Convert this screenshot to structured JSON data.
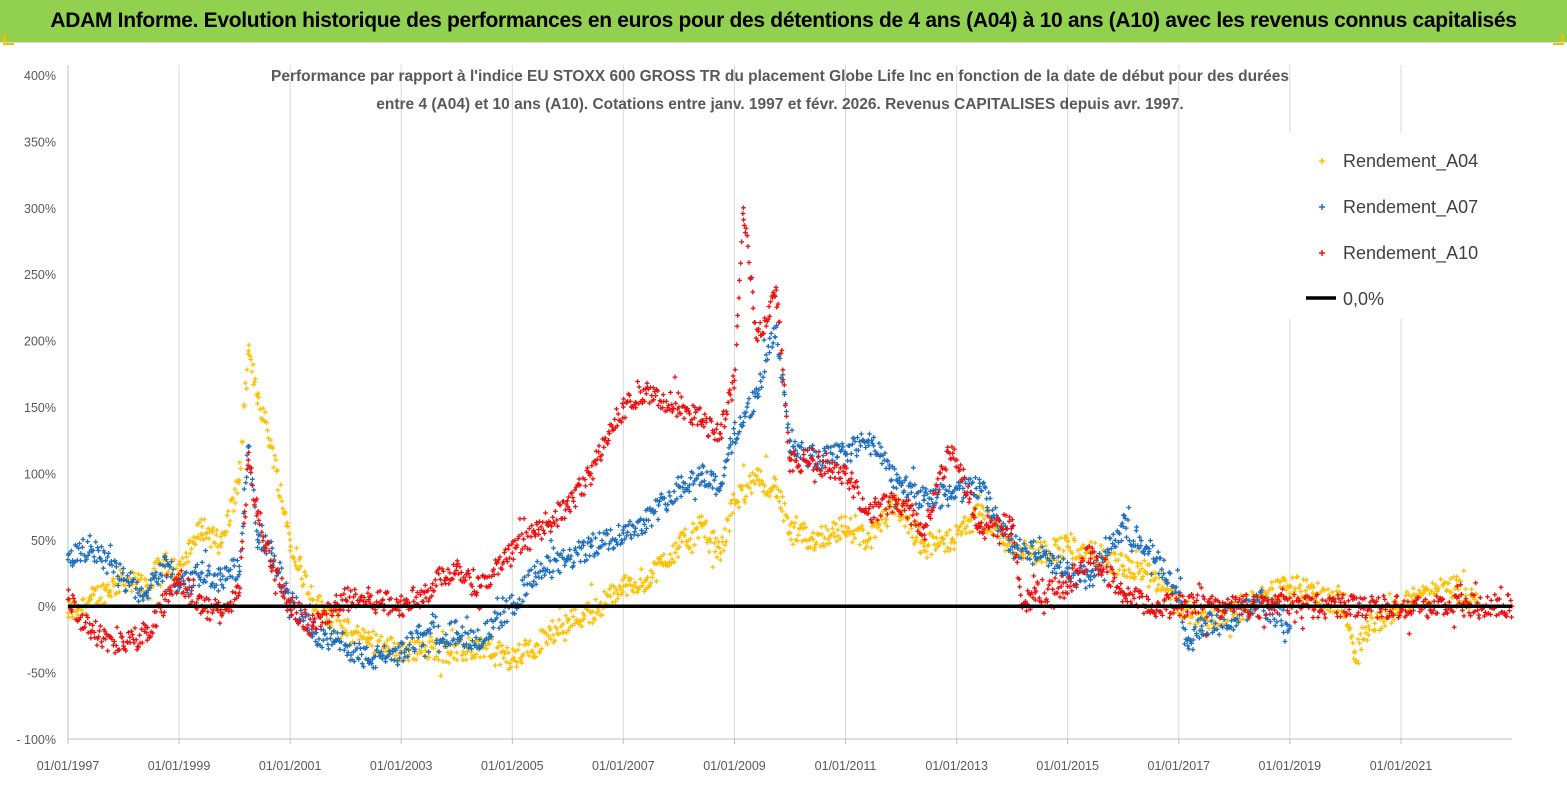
{
  "banner": {
    "title": "ADAM Informe. Evolution historique des performances en euros pour des détentions de 4 ans (A04) à 10 ans (A10) avec les revenus connus capitalisés"
  },
  "chart_data": {
    "type": "scatter",
    "title_line1": "Performance par rapport à l'indice EU STOXX 600 GROSS TR  du placement Globe Life Inc en fonction de la date de début pour des durées",
    "title_line2": "entre 4 (A04) et 10 ans (A10).  Cotations entre janv. 1997 et févr. 2026. Revenus CAPITALISES depuis avr. 1997.",
    "xlabel": "",
    "ylabel": "",
    "ylim": [
      -100,
      400
    ],
    "xlim": [
      "1997-01-01",
      "2023-01-01"
    ],
    "yticks": [
      "400%",
      "350%",
      "300%",
      "250%",
      "200%",
      "150%",
      "100%",
      "50%",
      "0%",
      "-50%",
      "- 100%"
    ],
    "ytick_values": [
      400,
      350,
      300,
      250,
      200,
      150,
      100,
      50,
      0,
      -50,
      -100
    ],
    "xticks": [
      "01/01/1997",
      "01/01/1999",
      "01/01/2001",
      "01/01/2003",
      "01/01/2005",
      "01/01/2007",
      "01/01/2009",
      "01/01/2011",
      "01/01/2013",
      "01/01/2015",
      "01/01/2017",
      "01/01/2019",
      "01/01/2021"
    ],
    "grid": "vertical",
    "legend_placement": "top-right",
    "series": [
      {
        "name": "Rendement_A04",
        "color": "#ffc000",
        "marker": "+",
        "x": [
          "1997-01-01",
          "1997-06-01",
          "1998-01-01",
          "1998-06-01",
          "1998-10-01",
          "1999-01-01",
          "1999-06-01",
          "1999-10-01",
          "2000-02-01",
          "2000-04-01",
          "2000-06-01",
          "2000-09-01",
          "2001-01-01",
          "2001-06-01",
          "2002-01-01",
          "2002-06-01",
          "2003-01-01",
          "2003-06-01",
          "2004-01-01",
          "2004-06-01",
          "2005-01-01",
          "2005-06-01",
          "2006-01-01",
          "2006-06-01",
          "2007-01-01",
          "2007-06-01",
          "2008-01-01",
          "2008-06-01",
          "2008-10-01",
          "2009-01-01",
          "2009-06-01",
          "2009-10-01",
          "2010-01-01",
          "2010-06-01",
          "2011-01-01",
          "2011-06-01",
          "2011-12-01",
          "2012-06-01",
          "2012-12-01",
          "2013-06-01",
          "2014-01-01",
          "2014-06-01",
          "2015-01-01",
          "2015-06-01",
          "2016-01-01",
          "2016-06-01",
          "2017-01-01",
          "2017-06-01",
          "2018-01-01",
          "2018-06-01",
          "2019-01-01",
          "2019-06-01",
          "2020-01-01",
          "2020-03-01",
          "2020-06-01",
          "2021-01-01",
          "2021-06-01",
          "2022-01-01",
          "2022-06-01"
        ],
        "values": [
          -5,
          5,
          20,
          15,
          35,
          25,
          60,
          45,
          95,
          190,
          160,
          120,
          50,
          5,
          -20,
          -25,
          -35,
          -30,
          -35,
          -30,
          -40,
          -30,
          -10,
          -5,
          15,
          20,
          45,
          60,
          40,
          80,
          95,
          90,
          55,
          50,
          60,
          50,
          75,
          45,
          50,
          70,
          45,
          40,
          45,
          40,
          30,
          25,
          0,
          -10,
          -5,
          5,
          15,
          10,
          0,
          -35,
          -15,
          0,
          10,
          15,
          0
        ]
      },
      {
        "name": "Rendement_A07",
        "color": "#1f6fbf",
        "marker": "+",
        "x": [
          "1997-01-01",
          "1997-06-01",
          "1998-01-01",
          "1998-06-01",
          "1998-10-01",
          "1999-01-01",
          "1999-06-01",
          "1999-10-01",
          "2000-02-01",
          "2000-04-01",
          "2000-06-01",
          "2000-09-01",
          "2001-01-01",
          "2001-06-01",
          "2002-01-01",
          "2002-06-01",
          "2003-01-01",
          "2003-06-01",
          "2004-01-01",
          "2004-06-01",
          "2005-01-01",
          "2005-06-01",
          "2006-01-01",
          "2006-06-01",
          "2007-01-01",
          "2007-06-01",
          "2008-01-01",
          "2008-06-01",
          "2008-10-01",
          "2009-01-01",
          "2009-06-01",
          "2009-10-01",
          "2010-01-01",
          "2010-06-01",
          "2011-01-01",
          "2011-06-01",
          "2011-12-01",
          "2012-06-01",
          "2012-12-01",
          "2013-06-01",
          "2014-01-01",
          "2014-06-01",
          "2015-01-01",
          "2015-06-01",
          "2016-01-01",
          "2016-06-01",
          "2017-01-01",
          "2017-03-01",
          "2017-06-01",
          "2018-01-01",
          "2018-06-01",
          "2019-01-01"
        ],
        "values": [
          35,
          45,
          20,
          10,
          30,
          15,
          25,
          20,
          30,
          120,
          50,
          40,
          5,
          -20,
          -30,
          -40,
          -35,
          -20,
          -20,
          -25,
          0,
          25,
          35,
          45,
          55,
          65,
          90,
          100,
          90,
          130,
          160,
          210,
          125,
          110,
          115,
          125,
          95,
          80,
          85,
          90,
          45,
          40,
          25,
          20,
          60,
          45,
          10,
          -30,
          -15,
          -10,
          5,
          -15
        ]
      },
      {
        "name": "Rendement_A10",
        "color": "#ee1111",
        "marker": "+",
        "x": [
          "1997-01-01",
          "1997-06-01",
          "1998-01-01",
          "1998-06-01",
          "1998-10-01",
          "1999-01-01",
          "1999-06-01",
          "1999-10-01",
          "2000-02-01",
          "2000-04-01",
          "2000-06-01",
          "2000-09-01",
          "2001-01-01",
          "2001-06-01",
          "2002-01-01",
          "2002-06-01",
          "2003-01-01",
          "2003-06-01",
          "2004-01-01",
          "2004-06-01",
          "2005-01-01",
          "2005-06-01",
          "2006-01-01",
          "2006-06-01",
          "2006-10-01",
          "2007-01-01",
          "2007-06-01",
          "2008-01-01",
          "2008-06-01",
          "2008-10-01",
          "2009-01-01",
          "2009-03-01",
          "2009-06-01",
          "2009-10-01",
          "2010-01-01",
          "2010-06-01",
          "2011-01-01",
          "2011-06-01",
          "2011-12-01",
          "2012-06-01",
          "2012-12-01",
          "2013-06-01",
          "2014-01-01",
          "2014-03-01",
          "2014-06-01",
          "2015-01-01",
          "2015-06-01",
          "2016-01-01",
          "2016-06-01",
          "2017-01-01",
          "2018-01-01",
          "2019-01-01",
          "2020-01-01",
          "2021-01-01",
          "2022-01-01",
          "2023-01-01"
        ],
        "values": [
          5,
          -20,
          -30,
          -20,
          5,
          20,
          0,
          -5,
          10,
          110,
          70,
          30,
          0,
          -15,
          5,
          5,
          0,
          10,
          30,
          15,
          40,
          55,
          75,
          100,
          130,
          150,
          160,
          150,
          140,
          130,
          170,
          300,
          200,
          240,
          110,
          110,
          100,
          70,
          80,
          60,
          120,
          60,
          60,
          0,
          10,
          15,
          40,
          10,
          0,
          0,
          0,
          0,
          0,
          0,
          0,
          0
        ]
      },
      {
        "name": "0,0%",
        "color": "#000000",
        "type": "line",
        "values": [
          0,
          0
        ]
      }
    ]
  }
}
